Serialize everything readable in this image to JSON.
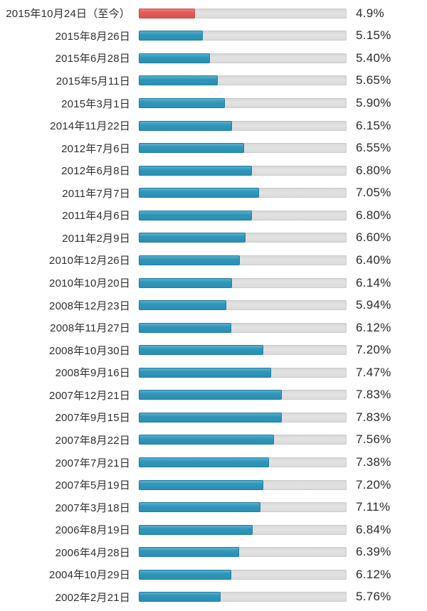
{
  "chart_data": {
    "type": "bar",
    "orientation": "horizontal",
    "title": "",
    "xlabel": "",
    "ylabel": "",
    "xlim": [
      3,
      10
    ],
    "grid": false,
    "legend": "none",
    "value_unit": "%",
    "colors": {
      "bar_blue": "#2e97bb",
      "bar_blue_border": "#1e7da0",
      "bar_red": "#e25a58",
      "bar_red_border": "#c74947",
      "track_gray": "#dcdcdc",
      "text": "#2f2f2f"
    },
    "rows": [
      {
        "date": "2015年10月24日（至今）",
        "value": 4.9,
        "display": "4.9%",
        "highlight": true
      },
      {
        "date": "2015年8月26日",
        "value": 5.15,
        "display": "5.15%",
        "highlight": false
      },
      {
        "date": "2015年6月28日",
        "value": 5.4,
        "display": "5.40%",
        "highlight": false
      },
      {
        "date": "2015年5月11日",
        "value": 5.65,
        "display": "5.65%",
        "highlight": false
      },
      {
        "date": "2015年3月1日",
        "value": 5.9,
        "display": "5.90%",
        "highlight": false
      },
      {
        "date": "2014年11月22日",
        "value": 6.15,
        "display": "6.15%",
        "highlight": false
      },
      {
        "date": "2012年7月6日",
        "value": 6.55,
        "display": "6.55%",
        "highlight": false
      },
      {
        "date": "2012年6月8日",
        "value": 6.8,
        "display": "6.80%",
        "highlight": false
      },
      {
        "date": "2011年7月7日",
        "value": 7.05,
        "display": "7.05%",
        "highlight": false
      },
      {
        "date": "2011年4月6日",
        "value": 6.8,
        "display": "6.80%",
        "highlight": false
      },
      {
        "date": "2011年2月9日",
        "value": 6.6,
        "display": "6.60%",
        "highlight": false
      },
      {
        "date": "2010年12月26日",
        "value": 6.4,
        "display": "6.40%",
        "highlight": false
      },
      {
        "date": "2010年10月20日",
        "value": 6.14,
        "display": "6.14%",
        "highlight": false
      },
      {
        "date": "2008年12月23日",
        "value": 5.94,
        "display": "5.94%",
        "highlight": false
      },
      {
        "date": "2008年11月27日",
        "value": 6.12,
        "display": "6.12%",
        "highlight": false
      },
      {
        "date": "2008年10月30日",
        "value": 7.2,
        "display": "7.20%",
        "highlight": false
      },
      {
        "date": "2008年9月16日",
        "value": 7.47,
        "display": "7.47%",
        "highlight": false
      },
      {
        "date": "2007年12月21日",
        "value": 7.83,
        "display": "7.83%",
        "highlight": false
      },
      {
        "date": "2007年9月15日",
        "value": 7.83,
        "display": "7.83%",
        "highlight": false
      },
      {
        "date": "2007年8月22日",
        "value": 7.56,
        "display": "7.56%",
        "highlight": false
      },
      {
        "date": "2007年7月21日",
        "value": 7.38,
        "display": "7.38%",
        "highlight": false
      },
      {
        "date": "2007年5月19日",
        "value": 7.2,
        "display": "7.20%",
        "highlight": false
      },
      {
        "date": "2007年3月18日",
        "value": 7.11,
        "display": "7.11%",
        "highlight": false
      },
      {
        "date": "2006年8月19日",
        "value": 6.84,
        "display": "6.84%",
        "highlight": false
      },
      {
        "date": "2006年4月28日",
        "value": 6.39,
        "display": "6.39%",
        "highlight": false
      },
      {
        "date": "2004年10月29日",
        "value": 6.12,
        "display": "6.12%",
        "highlight": false
      },
      {
        "date": "2002年2月21日",
        "value": 5.76,
        "display": "5.76%",
        "highlight": false
      }
    ]
  }
}
